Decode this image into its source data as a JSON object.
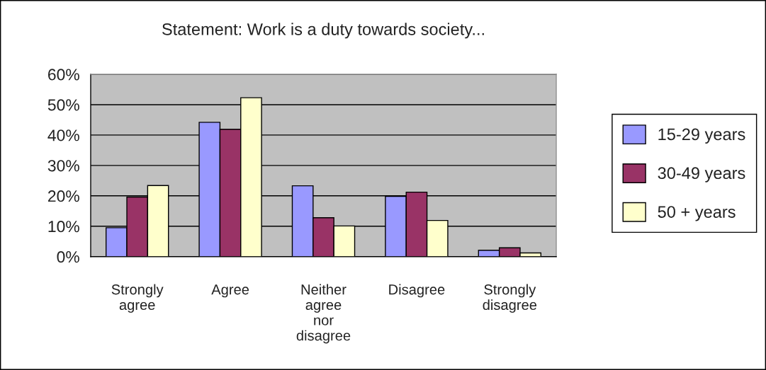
{
  "chart_data": {
    "type": "bar",
    "title": "Statement: Work is a duty towards society...",
    "categories": [
      "Strongly\nagree",
      "Agree",
      "Neither\nagree\nnor\ndisagree",
      "Disagree",
      "Strongly\ndisagree"
    ],
    "series": [
      {
        "name": "15-29 years",
        "color": "#9999ff",
        "values": [
          9.5,
          44.2,
          23.3,
          19.8,
          2.1
        ]
      },
      {
        "name": "30-49 years",
        "color": "#993366",
        "values": [
          19.6,
          41.9,
          12.8,
          21.2,
          2.9
        ]
      },
      {
        "name": "50 + years",
        "color": "#ffffcc",
        "values": [
          23.4,
          52.3,
          10.1,
          11.9,
          1.2
        ]
      }
    ],
    "ylim": [
      0,
      60
    ],
    "yticks": [
      {
        "value": 0,
        "label": "0%"
      },
      {
        "value": 10,
        "label": "10%"
      },
      {
        "value": 20,
        "label": "20%"
      },
      {
        "value": 30,
        "label": "30%"
      },
      {
        "value": 40,
        "label": "40%"
      },
      {
        "value": 50,
        "label": "50%"
      },
      {
        "value": 60,
        "label": "60%"
      }
    ],
    "grid": "y",
    "legend": "right"
  }
}
